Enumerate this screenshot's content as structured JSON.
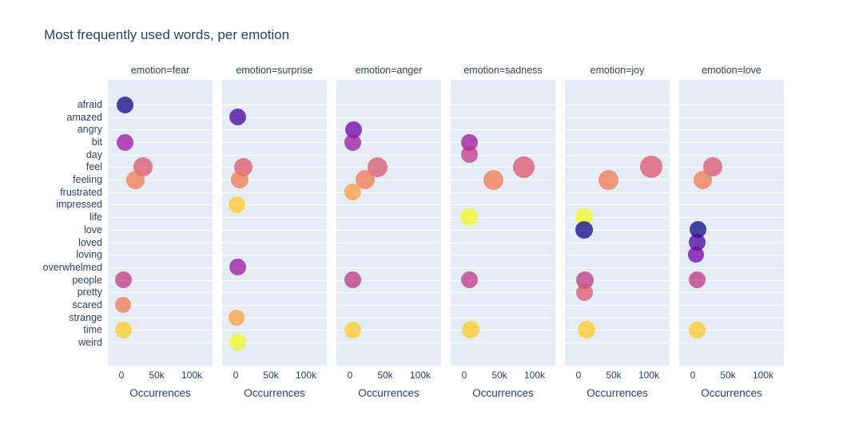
{
  "title": "Most frequently used words, per emotion",
  "chart_data": {
    "type": "scatter",
    "title": "Most frequently used words, per emotion",
    "xlabel": "Occurrences",
    "ylabel": "",
    "legend": "none",
    "grid": "horizontal-white-on-lightblue",
    "x_ticks": [
      {
        "label": "0",
        "value": 0
      },
      {
        "label": "50k",
        "value": 50000
      },
      {
        "label": "100k",
        "value": 100000
      }
    ],
    "x_range_k": [
      -19.3,
      129.5
    ],
    "categories": [
      "afraid",
      "amazed",
      "angry",
      "bit",
      "day",
      "feel",
      "feeling",
      "frustrated",
      "impressed",
      "life",
      "love",
      "loved",
      "loving",
      "overwhelmed",
      "people",
      "pretty",
      "scared",
      "strange",
      "time",
      "weird"
    ],
    "word_colors": {
      "afraid": "#0d0887",
      "amazed": "#46039f",
      "angry": "#7201a8",
      "bit": "#9c179e",
      "day": "#bd3786",
      "feel": "#d8576b",
      "feeling": "#ed7953",
      "frustrated": "#fb9f3a",
      "impressed": "#fdca26",
      "life": "#f0f921",
      "love": "#0d0887",
      "loved": "#46039f",
      "loving": "#7201a8",
      "overwhelmed": "#9c179e",
      "people": "#bd3786",
      "pretty": "#d8576b",
      "scared": "#ed7953",
      "strange": "#fb9f3a",
      "time": "#fdca26",
      "weird": "#f0f921"
    },
    "marker_opacity": 0.75,
    "facets": [
      {
        "emotion": "fear",
        "label": "emotion=fear",
        "points": [
          {
            "word": "afraid",
            "occurrences": 5000,
            "diameter": 21
          },
          {
            "word": "bit",
            "occurrences": 5000,
            "diameter": 21
          },
          {
            "word": "feel",
            "occurrences": 31000,
            "diameter": 24
          },
          {
            "word": "feeling",
            "occurrences": 20000,
            "diameter": 23
          },
          {
            "word": "people",
            "occurrences": 3000,
            "diameter": 21
          },
          {
            "word": "scared",
            "occurrences": 2000,
            "diameter": 20
          },
          {
            "word": "time",
            "occurrences": 3000,
            "diameter": 21
          }
        ]
      },
      {
        "emotion": "surprise",
        "label": "emotion=surprise",
        "points": [
          {
            "word": "amazed",
            "occurrences": 2500,
            "diameter": 21
          },
          {
            "word": "feel",
            "occurrences": 11000,
            "diameter": 23
          },
          {
            "word": "feeling",
            "occurrences": 6000,
            "diameter": 22
          },
          {
            "word": "impressed",
            "occurrences": 2000,
            "diameter": 21
          },
          {
            "word": "overwhelmed",
            "occurrences": 2500,
            "diameter": 21
          },
          {
            "word": "strange",
            "occurrences": 1200,
            "diameter": 20
          },
          {
            "word": "weird",
            "occurrences": 2500,
            "diameter": 21
          }
        ]
      },
      {
        "emotion": "anger",
        "label": "emotion=anger",
        "points": [
          {
            "word": "angry",
            "occurrences": 5000,
            "diameter": 21
          },
          {
            "word": "bit",
            "occurrences": 4200,
            "diameter": 21
          },
          {
            "word": "feel",
            "occurrences": 39000,
            "diameter": 25
          },
          {
            "word": "feeling",
            "occurrences": 22000,
            "diameter": 24
          },
          {
            "word": "frustrated",
            "occurrences": 3800,
            "diameter": 21
          },
          {
            "word": "people",
            "occurrences": 4500,
            "diameter": 21
          },
          {
            "word": "time",
            "occurrences": 4500,
            "diameter": 21
          }
        ]
      },
      {
        "emotion": "sadness",
        "label": "emotion=sadness",
        "points": [
          {
            "word": "bit",
            "occurrences": 7000,
            "diameter": 21
          },
          {
            "word": "day",
            "occurrences": 7000,
            "diameter": 21
          },
          {
            "word": "feel",
            "occurrences": 85000,
            "diameter": 27
          },
          {
            "word": "feeling",
            "occurrences": 42000,
            "diameter": 25
          },
          {
            "word": "life",
            "occurrences": 7000,
            "diameter": 22
          },
          {
            "word": "people",
            "occurrences": 7000,
            "diameter": 21
          },
          {
            "word": "time",
            "occurrences": 9000,
            "diameter": 22
          }
        ]
      },
      {
        "emotion": "joy",
        "label": "emotion=joy",
        "points": [
          {
            "word": "feel",
            "occurrences": 103000,
            "diameter": 28
          },
          {
            "word": "feeling",
            "occurrences": 43000,
            "diameter": 25
          },
          {
            "word": "life",
            "occurrences": 8000,
            "diameter": 22
          },
          {
            "word": "love",
            "occurrences": 8000,
            "diameter": 22
          },
          {
            "word": "people",
            "occurrences": 9000,
            "diameter": 22
          },
          {
            "word": "pretty",
            "occurrences": 8000,
            "diameter": 21
          },
          {
            "word": "time",
            "occurrences": 11000,
            "diameter": 22
          }
        ]
      },
      {
        "emotion": "love",
        "label": "emotion=love",
        "points": [
          {
            "word": "feel",
            "occurrences": 28000,
            "diameter": 24
          },
          {
            "word": "feeling",
            "occurrences": 14000,
            "diameter": 23
          },
          {
            "word": "love",
            "occurrences": 7000,
            "diameter": 21
          },
          {
            "word": "loved",
            "occurrences": 6000,
            "diameter": 21
          },
          {
            "word": "loving",
            "occurrences": 4800,
            "diameter": 20
          },
          {
            "word": "people",
            "occurrences": 6000,
            "diameter": 21
          },
          {
            "word": "time",
            "occurrences": 6000,
            "diameter": 21
          }
        ]
      }
    ],
    "colors": {
      "panel_bg": "#e5ecf6",
      "gridline": "#ffffff",
      "text": "#2a3f5f",
      "page_bg": "#ffffff"
    }
  }
}
